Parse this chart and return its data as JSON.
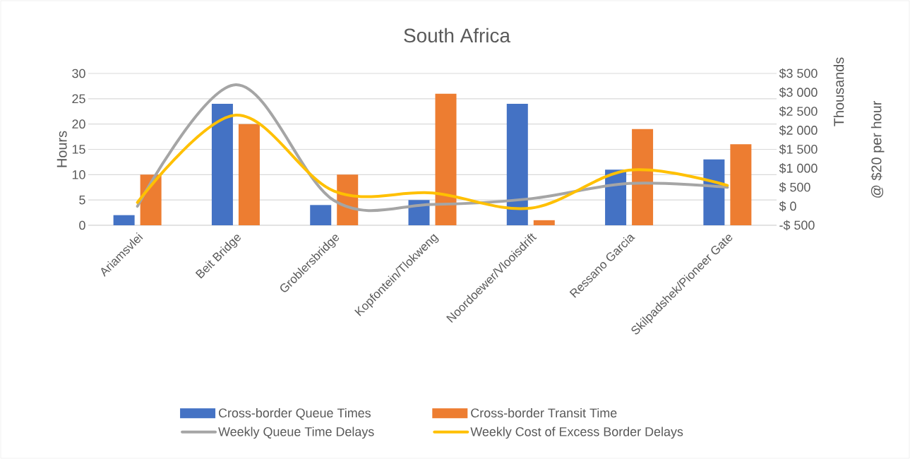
{
  "chart_data": {
    "type": "bar",
    "title": "South Africa",
    "ylabel": "Hours",
    "y2label": "Thousands",
    "annotations": [
      "@ $20 per hour"
    ],
    "categories": [
      "Ariamsvlei",
      "Beit Bridge",
      "Groblersbridge",
      "Kopfontein/Tlokweng",
      "Noordoewer/Vlooisdrift",
      "Ressano Garcia",
      "Skilpadshek/Pioneer Gate"
    ],
    "series": [
      {
        "name": "Cross-border Queue Times",
        "color": "#4472c4",
        "values": [
          2,
          24,
          4,
          5,
          24,
          11,
          13
        ]
      },
      {
        "name": "Cross-border Transit Time",
        "color": "#ed7d31",
        "values": [
          10,
          20,
          10,
          26,
          1,
          19,
          16
        ]
      },
      {
        "name": "Weekly Queue Time Delays",
        "type": "line",
        "axis": "y2",
        "color": "#a5a5a5",
        "values": [
          0,
          3200,
          150,
          50,
          200,
          600,
          500
        ]
      },
      {
        "name": "Weekly Cost of Excess Border Delays",
        "type": "line",
        "axis": "y2",
        "color": "#ffc000",
        "values": [
          100,
          2400,
          400,
          350,
          -50,
          950,
          550
        ]
      }
    ],
    "ylim": [
      0,
      30
    ],
    "yticks": [
      0,
      5,
      10,
      15,
      20,
      25,
      30
    ],
    "y2lim": [
      -500,
      3500
    ],
    "y2ticks": [
      {
        "value": -500,
        "label": "-$ 500"
      },
      {
        "value": 0,
        "label": "$ 0"
      },
      {
        "value": 500,
        "label": "$ 500"
      },
      {
        "value": 1000,
        "label": "$1 000"
      },
      {
        "value": 1500,
        "label": "$1 500"
      },
      {
        "value": 2000,
        "label": "$2 000"
      },
      {
        "value": 2500,
        "label": "$2 500"
      },
      {
        "value": 3000,
        "label": "$3 000"
      },
      {
        "value": 3500,
        "label": "$3 500"
      }
    ],
    "grid": "y",
    "legend": "bottom",
    "marker": "none",
    "line_style": "solid"
  }
}
